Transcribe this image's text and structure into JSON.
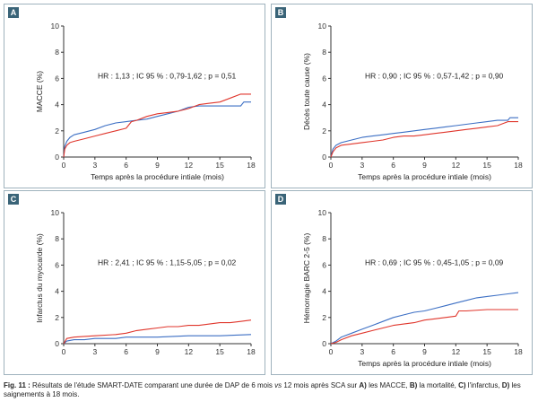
{
  "colors": {
    "series1": "#3c6fc4",
    "series2": "#e0362c",
    "panel_border": "#9fb2bd",
    "badge": "#3a6478"
  },
  "caption": {
    "label": "Fig. 11 :",
    "text_before": " Résultats de l'étude SMART-DATE comparant une durée de DAP de 6 mois ",
    "vs": "vs",
    "text_after": " 12 mois après SCA sur ",
    "a": "A)",
    "a_text": " les MACCE, ",
    "b": "B)",
    "b_text": " la mortalité, ",
    "c": "C)",
    "c_text": " l'infarctus, ",
    "d": "D)",
    "d_text": " les saignements à 18 mois."
  },
  "chart_data": [
    {
      "panel": "A",
      "type": "line",
      "xlabel": "Temps après la procédure intiale (mois)",
      "ylabel": "MACCE (%)",
      "xlim": [
        0,
        18
      ],
      "ylim": [
        0,
        10
      ],
      "xticks": [
        0,
        3,
        6,
        9,
        12,
        15,
        18
      ],
      "yticks": [
        0,
        2,
        4,
        6,
        8,
        10
      ],
      "annotation": "HR : 1,13 ; IC 95 % : 0,79-1,62 ; p = 0,51",
      "series": [
        {
          "color": "blue",
          "points": [
            [
              0,
              0
            ],
            [
              0.1,
              0.8
            ],
            [
              0.3,
              1.2
            ],
            [
              0.6,
              1.5
            ],
            [
              1,
              1.7
            ],
            [
              2,
              1.9
            ],
            [
              3,
              2.1
            ],
            [
              4,
              2.4
            ],
            [
              5,
              2.6
            ],
            [
              6,
              2.7
            ],
            [
              7,
              2.8
            ],
            [
              8,
              2.9
            ],
            [
              9,
              3.1
            ],
            [
              10,
              3.3
            ],
            [
              11,
              3.5
            ],
            [
              12,
              3.8
            ],
            [
              13,
              3.9
            ],
            [
              14,
              3.9
            ],
            [
              15,
              3.9
            ],
            [
              16,
              3.9
            ],
            [
              17,
              3.9
            ],
            [
              17.3,
              4.2
            ],
            [
              18,
              4.2
            ]
          ]
        },
        {
          "color": "red",
          "points": [
            [
              0,
              0
            ],
            [
              0.1,
              0.6
            ],
            [
              0.3,
              0.9
            ],
            [
              0.6,
              1.1
            ],
            [
              1,
              1.2
            ],
            [
              2,
              1.4
            ],
            [
              3,
              1.6
            ],
            [
              4,
              1.8
            ],
            [
              5,
              2.0
            ],
            [
              6,
              2.2
            ],
            [
              6.5,
              2.7
            ],
            [
              7,
              2.8
            ],
            [
              8,
              3.1
            ],
            [
              9,
              3.3
            ],
            [
              10,
              3.4
            ],
            [
              11,
              3.5
            ],
            [
              12,
              3.7
            ],
            [
              13,
              4.0
            ],
            [
              14,
              4.1
            ],
            [
              15,
              4.2
            ],
            [
              16,
              4.5
            ],
            [
              17,
              4.8
            ],
            [
              18,
              4.8
            ]
          ]
        }
      ]
    },
    {
      "panel": "B",
      "type": "line",
      "xlabel": "Temps après la procédure intiale (mois)",
      "ylabel": "Décès toute cause (%)",
      "xlim": [
        0,
        18
      ],
      "ylim": [
        0,
        10
      ],
      "xticks": [
        0,
        3,
        6,
        9,
        12,
        15,
        18
      ],
      "yticks": [
        0,
        2,
        4,
        6,
        8,
        10
      ],
      "annotation": "HR : 0,90 ; IC 95 % : 0,57-1,42 ; p = 0,90",
      "series": [
        {
          "color": "blue",
          "points": [
            [
              0,
              0
            ],
            [
              0.2,
              0.6
            ],
            [
              0.5,
              0.9
            ],
            [
              1,
              1.1
            ],
            [
              2,
              1.3
            ],
            [
              3,
              1.5
            ],
            [
              4,
              1.6
            ],
            [
              5,
              1.7
            ],
            [
              6,
              1.8
            ],
            [
              7,
              1.9
            ],
            [
              8,
              2.0
            ],
            [
              9,
              2.1
            ],
            [
              10,
              2.2
            ],
            [
              11,
              2.3
            ],
            [
              12,
              2.4
            ],
            [
              13,
              2.5
            ],
            [
              14,
              2.6
            ],
            [
              15,
              2.7
            ],
            [
              16,
              2.8
            ],
            [
              17,
              2.8
            ],
            [
              17.2,
              3.0
            ],
            [
              18,
              3.0
            ]
          ]
        },
        {
          "color": "red",
          "points": [
            [
              0,
              0
            ],
            [
              0.2,
              0.4
            ],
            [
              0.5,
              0.7
            ],
            [
              1,
              0.9
            ],
            [
              2,
              1.0
            ],
            [
              3,
              1.1
            ],
            [
              4,
              1.2
            ],
            [
              5,
              1.3
            ],
            [
              6,
              1.5
            ],
            [
              7,
              1.6
            ],
            [
              8,
              1.6
            ],
            [
              9,
              1.7
            ],
            [
              10,
              1.8
            ],
            [
              11,
              1.9
            ],
            [
              12,
              2.0
            ],
            [
              13,
              2.1
            ],
            [
              14,
              2.2
            ],
            [
              15,
              2.3
            ],
            [
              16,
              2.4
            ],
            [
              17,
              2.7
            ],
            [
              18,
              2.7
            ]
          ]
        }
      ]
    },
    {
      "panel": "C",
      "type": "line",
      "xlabel": "",
      "ylabel": "Infarctus du myocarde (%)",
      "xlim": [
        0,
        18
      ],
      "ylim": [
        0,
        10
      ],
      "xticks": [
        0,
        3,
        6,
        9,
        12,
        15,
        18
      ],
      "yticks": [
        0,
        2,
        4,
        6,
        8,
        10
      ],
      "annotation": "HR : 2,41 ; IC 95 % : 1,15-5,05 ; p = 0,02",
      "series": [
        {
          "color": "blue",
          "points": [
            [
              0,
              0
            ],
            [
              0.3,
              0.2
            ],
            [
              1,
              0.3
            ],
            [
              2,
              0.3
            ],
            [
              3,
              0.4
            ],
            [
              5,
              0.4
            ],
            [
              6,
              0.5
            ],
            [
              9,
              0.5
            ],
            [
              12,
              0.6
            ],
            [
              15,
              0.6
            ],
            [
              18,
              0.7
            ]
          ]
        },
        {
          "color": "red",
          "points": [
            [
              0,
              0
            ],
            [
              0.3,
              0.4
            ],
            [
              1,
              0.5
            ],
            [
              3,
              0.6
            ],
            [
              5,
              0.7
            ],
            [
              6,
              0.8
            ],
            [
              7,
              1.0
            ],
            [
              8,
              1.1
            ],
            [
              9,
              1.2
            ],
            [
              10,
              1.3
            ],
            [
              11,
              1.3
            ],
            [
              12,
              1.4
            ],
            [
              13,
              1.4
            ],
            [
              14,
              1.5
            ],
            [
              15,
              1.6
            ],
            [
              16,
              1.6
            ],
            [
              17,
              1.7
            ],
            [
              18,
              1.8
            ]
          ]
        }
      ]
    },
    {
      "panel": "D",
      "type": "line",
      "xlabel": "Temps après la procédure intiale (mois)",
      "ylabel": "Hémorragie BARC 2-5 (%)",
      "xlim": [
        0,
        18
      ],
      "ylim": [
        0,
        10
      ],
      "xticks": [
        0,
        3,
        6,
        9,
        12,
        15,
        18
      ],
      "yticks": [
        0,
        2,
        4,
        6,
        8,
        10
      ],
      "annotation": "HR : 0,69 ; IC 95 % : 0,45-1,05 ; p = 0,09",
      "series": [
        {
          "color": "blue",
          "points": [
            [
              0,
              0
            ],
            [
              0.5,
              0.2
            ],
            [
              1,
              0.5
            ],
            [
              2,
              0.8
            ],
            [
              3,
              1.1
            ],
            [
              4,
              1.4
            ],
            [
              5,
              1.7
            ],
            [
              6,
              2.0
            ],
            [
              7,
              2.2
            ],
            [
              8,
              2.4
            ],
            [
              9,
              2.5
            ],
            [
              10,
              2.7
            ],
            [
              11,
              2.9
            ],
            [
              12,
              3.1
            ],
            [
              13,
              3.3
            ],
            [
              14,
              3.5
            ],
            [
              15,
              3.6
            ],
            [
              16,
              3.7
            ],
            [
              17,
              3.8
            ],
            [
              18,
              3.9
            ]
          ]
        },
        {
          "color": "red",
          "points": [
            [
              0,
              0
            ],
            [
              0.5,
              0.1
            ],
            [
              1,
              0.3
            ],
            [
              2,
              0.6
            ],
            [
              3,
              0.8
            ],
            [
              4,
              1.0
            ],
            [
              5,
              1.2
            ],
            [
              6,
              1.4
            ],
            [
              7,
              1.5
            ],
            [
              8,
              1.6
            ],
            [
              9,
              1.8
            ],
            [
              10,
              1.9
            ],
            [
              11,
              2.0
            ],
            [
              12,
              2.1
            ],
            [
              12.3,
              2.5
            ],
            [
              13,
              2.5
            ],
            [
              15,
              2.6
            ],
            [
              18,
              2.6
            ]
          ]
        }
      ]
    }
  ]
}
